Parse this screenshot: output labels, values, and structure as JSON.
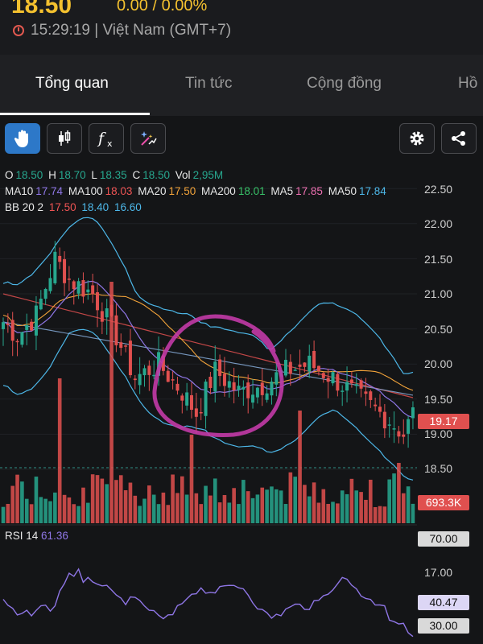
{
  "header": {
    "price": "18.50",
    "change": "0.00 / 0.00%",
    "time": "15:29:19 | Việt Nam (GMT+7)"
  },
  "tabs": [
    "Tổng quan",
    "Tin tức",
    "Cộng đồng",
    "Hồ"
  ],
  "legend": {
    "ohlc": {
      "o": "18.50",
      "h": "18.70",
      "l": "18.35",
      "c": "18.50",
      "vol": "2,95M"
    },
    "ma": [
      {
        "name": "MA10",
        "value": "17.74",
        "color": "#8f76e6"
      },
      {
        "name": "MA100",
        "value": "18.03",
        "color": "#ef5454"
      },
      {
        "name": "MA20",
        "value": "17.50",
        "color": "#f2a33a"
      },
      {
        "name": "MA200",
        "value": "18.01",
        "color": "#38c268"
      },
      {
        "name": "MA5",
        "value": "17.85",
        "color": "#ec6fb0"
      },
      {
        "name": "MA50",
        "value": "17.84",
        "color": "#4db7e8"
      }
    ],
    "bb": {
      "name": "BB 20 2",
      "v1": "17.50",
      "v2": "18.40",
      "v3": "16.60"
    }
  },
  "price_axis": [
    "22.50",
    "22.00",
    "21.50",
    "21.00",
    "20.50",
    "20.00",
    "19.50",
    "19.00",
    "18.50"
  ],
  "price_tag": "19.17",
  "volume_tag": "693.3K",
  "rsi": {
    "label": "RSI 14",
    "value": "61.36",
    "axis": [
      "70.00",
      "17.00"
    ],
    "tag_value": "40.47",
    "low_tag": "30.00"
  },
  "colors": {
    "up": "#27a78e",
    "down": "#e0504f",
    "annotation": "#c23aa7"
  },
  "icons": [
    "hand-icon",
    "candlestick-icon",
    "function-icon",
    "magic-icon",
    "gear-icon",
    "share-icon",
    "clock-icon"
  ]
}
